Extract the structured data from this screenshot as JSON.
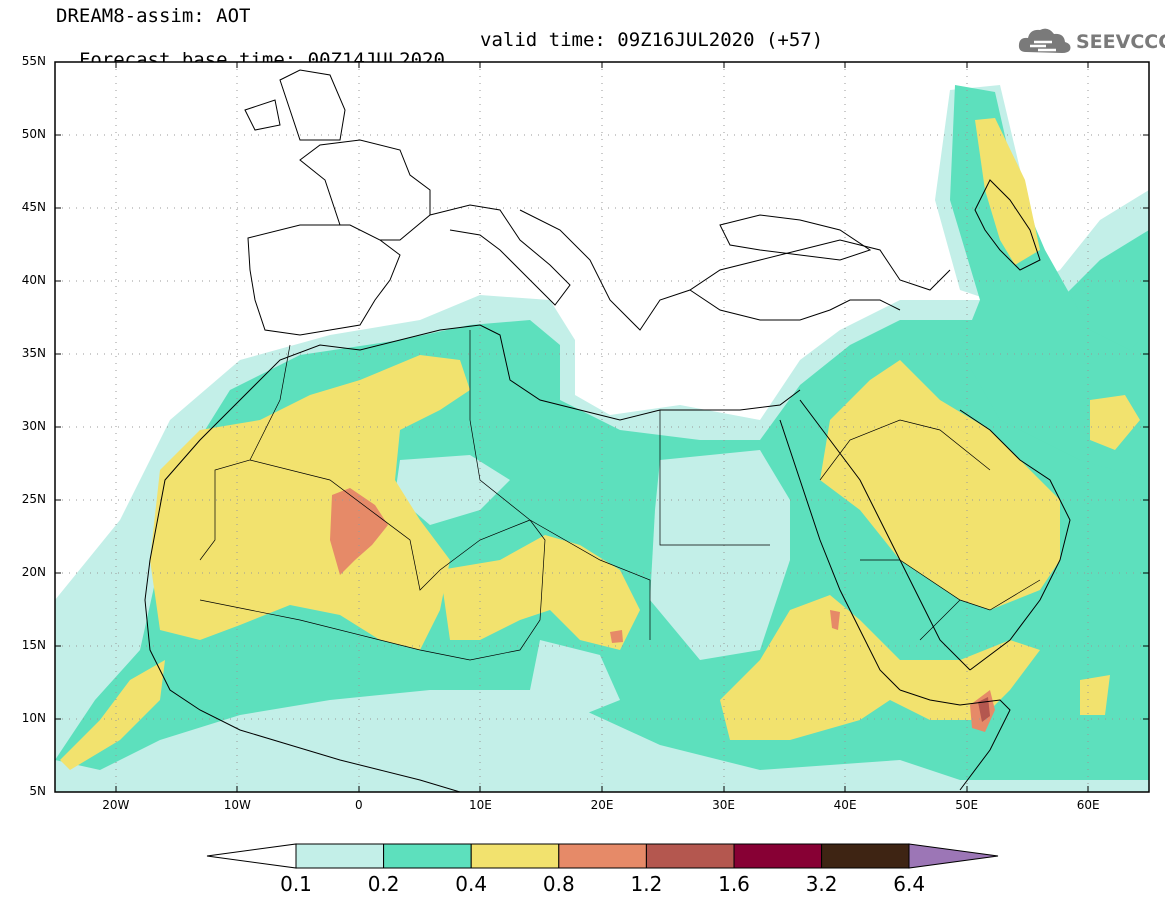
{
  "header": {
    "title_line1": "DREAM8-assim: AOT",
    "title_base": "Forecast base time: 00Z14JUL2020",
    "title_valid": "valid time: 09Z16JUL2020 (+57)"
  },
  "logo": {
    "text": "SEEVCCC",
    "icon": "cloud-icon"
  },
  "map": {
    "lon_range": [
      -25,
      65
    ],
    "lat_range": [
      5,
      55
    ],
    "lat_labels": [
      "55N",
      "50N",
      "45N",
      "40N",
      "35N",
      "30N",
      "25N",
      "20N",
      "15N",
      "10N",
      "5N"
    ],
    "lon_labels": [
      "20W",
      "10W",
      "0",
      "10E",
      "20E",
      "30E",
      "40E",
      "50E",
      "60E"
    ],
    "colors": {
      "c01": "#c3efe8",
      "c02": "#5de0bd",
      "c04": "#f2e26e",
      "c08": "#e68a68",
      "c12": "#b4574f",
      "c16": "#870034",
      "c32": "#3e2413",
      "c64": "#9c76b6"
    }
  },
  "colorbar": {
    "labels": [
      "0.1",
      "0.2",
      "0.4",
      "0.8",
      "1.2",
      "1.6",
      "3.2",
      "6.4"
    ],
    "colors": [
      "#c3efe8",
      "#5de0bd",
      "#f2e26e",
      "#e68a68",
      "#b4574f",
      "#870034",
      "#3e2413"
    ],
    "under_color": "#ffffff",
    "over_color": "#9c76b6"
  }
}
